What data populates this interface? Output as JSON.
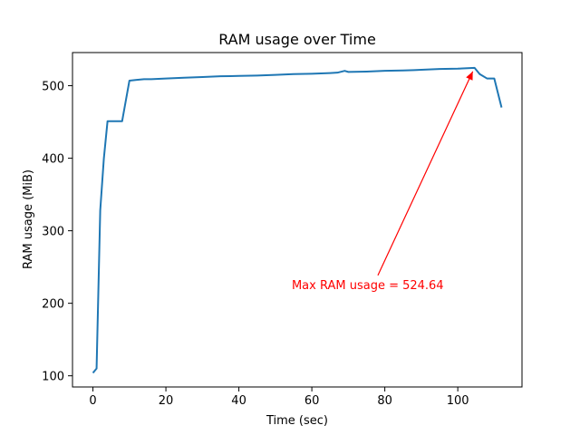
{
  "chart_data": {
    "type": "line",
    "title": "RAM usage over Time",
    "xlabel": "Time (sec)",
    "ylabel": "RAM usage (MiB)",
    "xlim": [
      -5.6,
      117.6
    ],
    "ylim": [
      84.6,
      545.7
    ],
    "xticks": [
      0,
      20,
      40,
      60,
      80,
      100
    ],
    "yticks": [
      100,
      200,
      300,
      400,
      500
    ],
    "grid": false,
    "line_color": "#1f77b4",
    "series": [
      {
        "x": [
          0,
          1,
          2,
          3,
          4,
          6,
          8,
          10,
          12,
          14,
          16,
          18,
          20,
          25,
          30,
          35,
          40,
          45,
          50,
          55,
          60,
          65,
          67,
          69,
          70,
          75,
          80,
          85,
          88,
          90,
          95,
          100,
          104.6,
          106,
          108,
          109,
          110,
          112
        ],
        "y": [
          104,
          110,
          328,
          400,
          451,
          451,
          451,
          507,
          508,
          509,
          509,
          509.5,
          510,
          511,
          512,
          513,
          513.5,
          514,
          515,
          516,
          516.5,
          517.5,
          518,
          520.5,
          519,
          519.5,
          520.5,
          521,
          521.5,
          522,
          523,
          523.5,
          524.64,
          516,
          510,
          510,
          510,
          470
        ]
      }
    ],
    "annotations": [
      {
        "text": "Max RAM usage = 524.64",
        "xy": [
          104.6,
          524.64
        ],
        "xytext": [
          54.5,
          226
        ],
        "color": "#ff0000"
      }
    ]
  }
}
